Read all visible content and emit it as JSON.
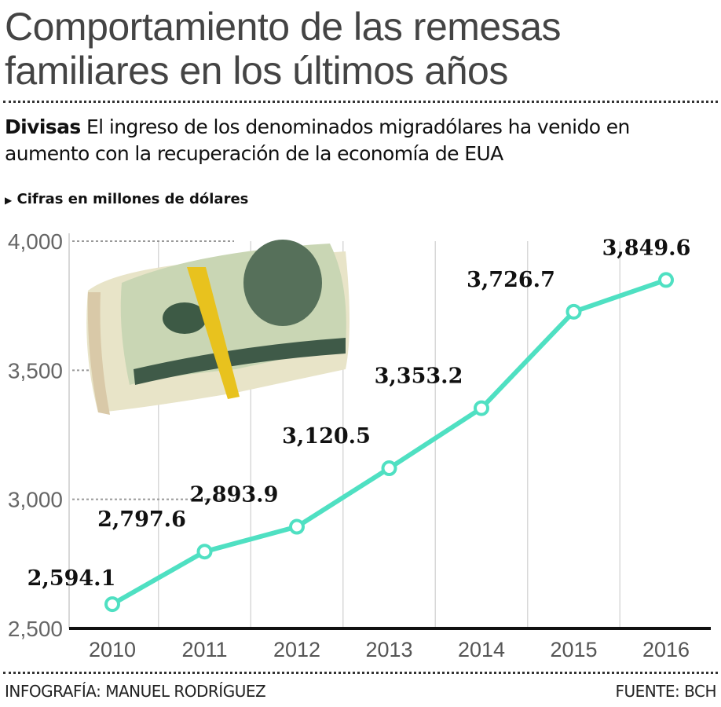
{
  "title": "Comportamiento de las remesas familiares en los últimos años",
  "subtitle_lead": "Divisas",
  "subtitle_text": "El ingreso de los denominados migradólares ha venido en aumento con la recuperación de la economía de EUA",
  "unit_note": "Cifras en millones de dólares",
  "credit": "INFOGRAFÍA: MANUEL RODRÍGUEZ",
  "source": "FUENTE: BCH",
  "colors": {
    "line": "#4fe0c2",
    "axis": "#111111",
    "grid": "#bbbbbb"
  },
  "image": "money-bundle",
  "chart_data": {
    "type": "line",
    "title": "",
    "xlabel": "",
    "ylabel": "",
    "categories": [
      "2010",
      "2011",
      "2012",
      "2013",
      "2014",
      "2015",
      "2016"
    ],
    "values": [
      2594.1,
      2797.6,
      2893.9,
      3120.5,
      3353.2,
      3726.7,
      3849.6
    ],
    "data_labels": [
      "2,594.1",
      "2,797.6",
      "2,893.9",
      "3,120.5",
      "3,353.2",
      "3,726.7",
      "3,849.6"
    ],
    "ylim": [
      2500,
      4000
    ],
    "yticks": [
      2500,
      3000,
      3500,
      4000
    ],
    "ytick_labels": [
      "2,500",
      "3,000",
      "3,500",
      "4,000"
    ],
    "grid": true
  }
}
